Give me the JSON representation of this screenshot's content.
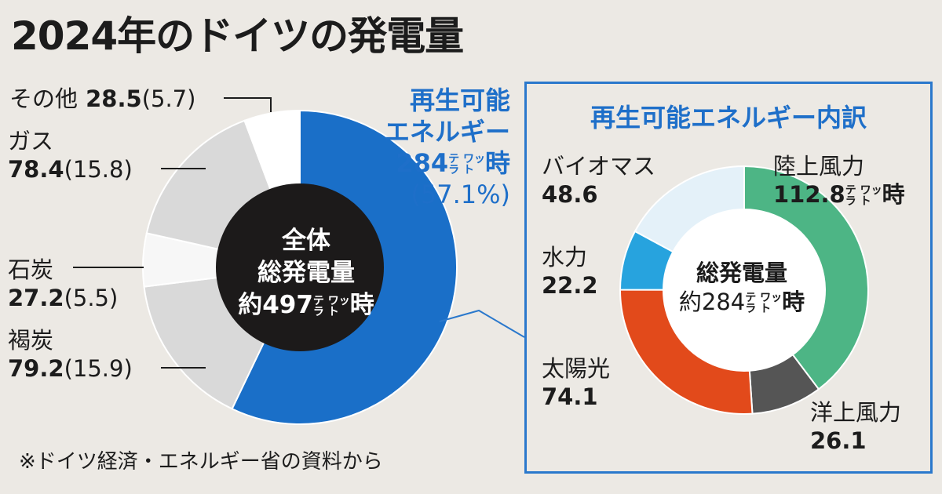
{
  "title": "2024年のドイツの発電量",
  "source_note": "※ドイツ経済・エネルギー省の資料から",
  "unit_label": "テラワット時",
  "unit_small_top": "テ ワッ",
  "unit_small_bottom": "ラ ト",
  "unit_big": "時",
  "chart_data": [
    {
      "type": "pie",
      "title": "2024年のドイツの発電量",
      "center_label": [
        "全体",
        "総発電量",
        "約497"
      ],
      "total": 497,
      "unit": "テラワット時",
      "slices": [
        {
          "name": "再生可能エネルギー",
          "value": 284,
          "percent": 57.1,
          "color": "#1a6fc8"
        },
        {
          "name": "褐炭",
          "value": 79.2,
          "percent": 15.9,
          "color": "#d9d9d9"
        },
        {
          "name": "石炭",
          "value": 27.2,
          "percent": 5.5,
          "color": "#f7f7f7"
        },
        {
          "name": "ガス",
          "value": 78.4,
          "percent": 15.8,
          "color": "#d9d9d9"
        },
        {
          "name": "その他",
          "value": 28.5,
          "percent": 5.7,
          "color": "#ffffff"
        }
      ]
    },
    {
      "type": "pie",
      "title": "再生可能エネルギー内訳",
      "center_label": [
        "総発電量",
        "約284"
      ],
      "total": 284,
      "unit": "テラワット時",
      "slices": [
        {
          "name": "陸上風力",
          "value": 112.8,
          "color": "#4db585"
        },
        {
          "name": "洋上風力",
          "value": 26.1,
          "color": "#555555"
        },
        {
          "name": "太陽光",
          "value": 74.1,
          "color": "#e24a1b"
        },
        {
          "name": "水力",
          "value": 22.2,
          "color": "#27a3de"
        },
        {
          "name": "バイオマス",
          "value": 48.6,
          "color": "#e4f1f9"
        }
      ]
    }
  ],
  "labels": {
    "other": {
      "name": "その他",
      "value": "28.5",
      "pct": "(5.7)"
    },
    "gas": {
      "name": "ガス",
      "value": "78.4",
      "pct": "(15.8)"
    },
    "coal": {
      "name": "石炭",
      "value": "27.2",
      "pct": "(5.5)"
    },
    "lignite": {
      "name": "褐炭",
      "value": "79.2",
      "pct": "(15.9)"
    },
    "renew": {
      "line1": "再生可能",
      "line2": "エネルギー",
      "value": "284",
      "pct": "(57.1%)"
    },
    "biomass": {
      "name": "バイオマス",
      "value": "48.6"
    },
    "hydro": {
      "name": "水力",
      "value": "22.2"
    },
    "solar": {
      "name": "太陽光",
      "value": "74.1"
    },
    "onshore": {
      "name": "陸上風力",
      "value": "112.8"
    },
    "offshore": {
      "name": "洋上風力",
      "value": "26.1"
    }
  },
  "center1": {
    "line1": "全体",
    "line2": "総発電量",
    "value": "約497"
  },
  "center2": {
    "line1": "総発電量",
    "value": "約284"
  },
  "panel_title": "再生可能エネルギー内訳",
  "colors": {
    "renewable_blue": "#1a6fc8",
    "accent_blue": "#1e6fc9",
    "background": "#ece9e4"
  }
}
